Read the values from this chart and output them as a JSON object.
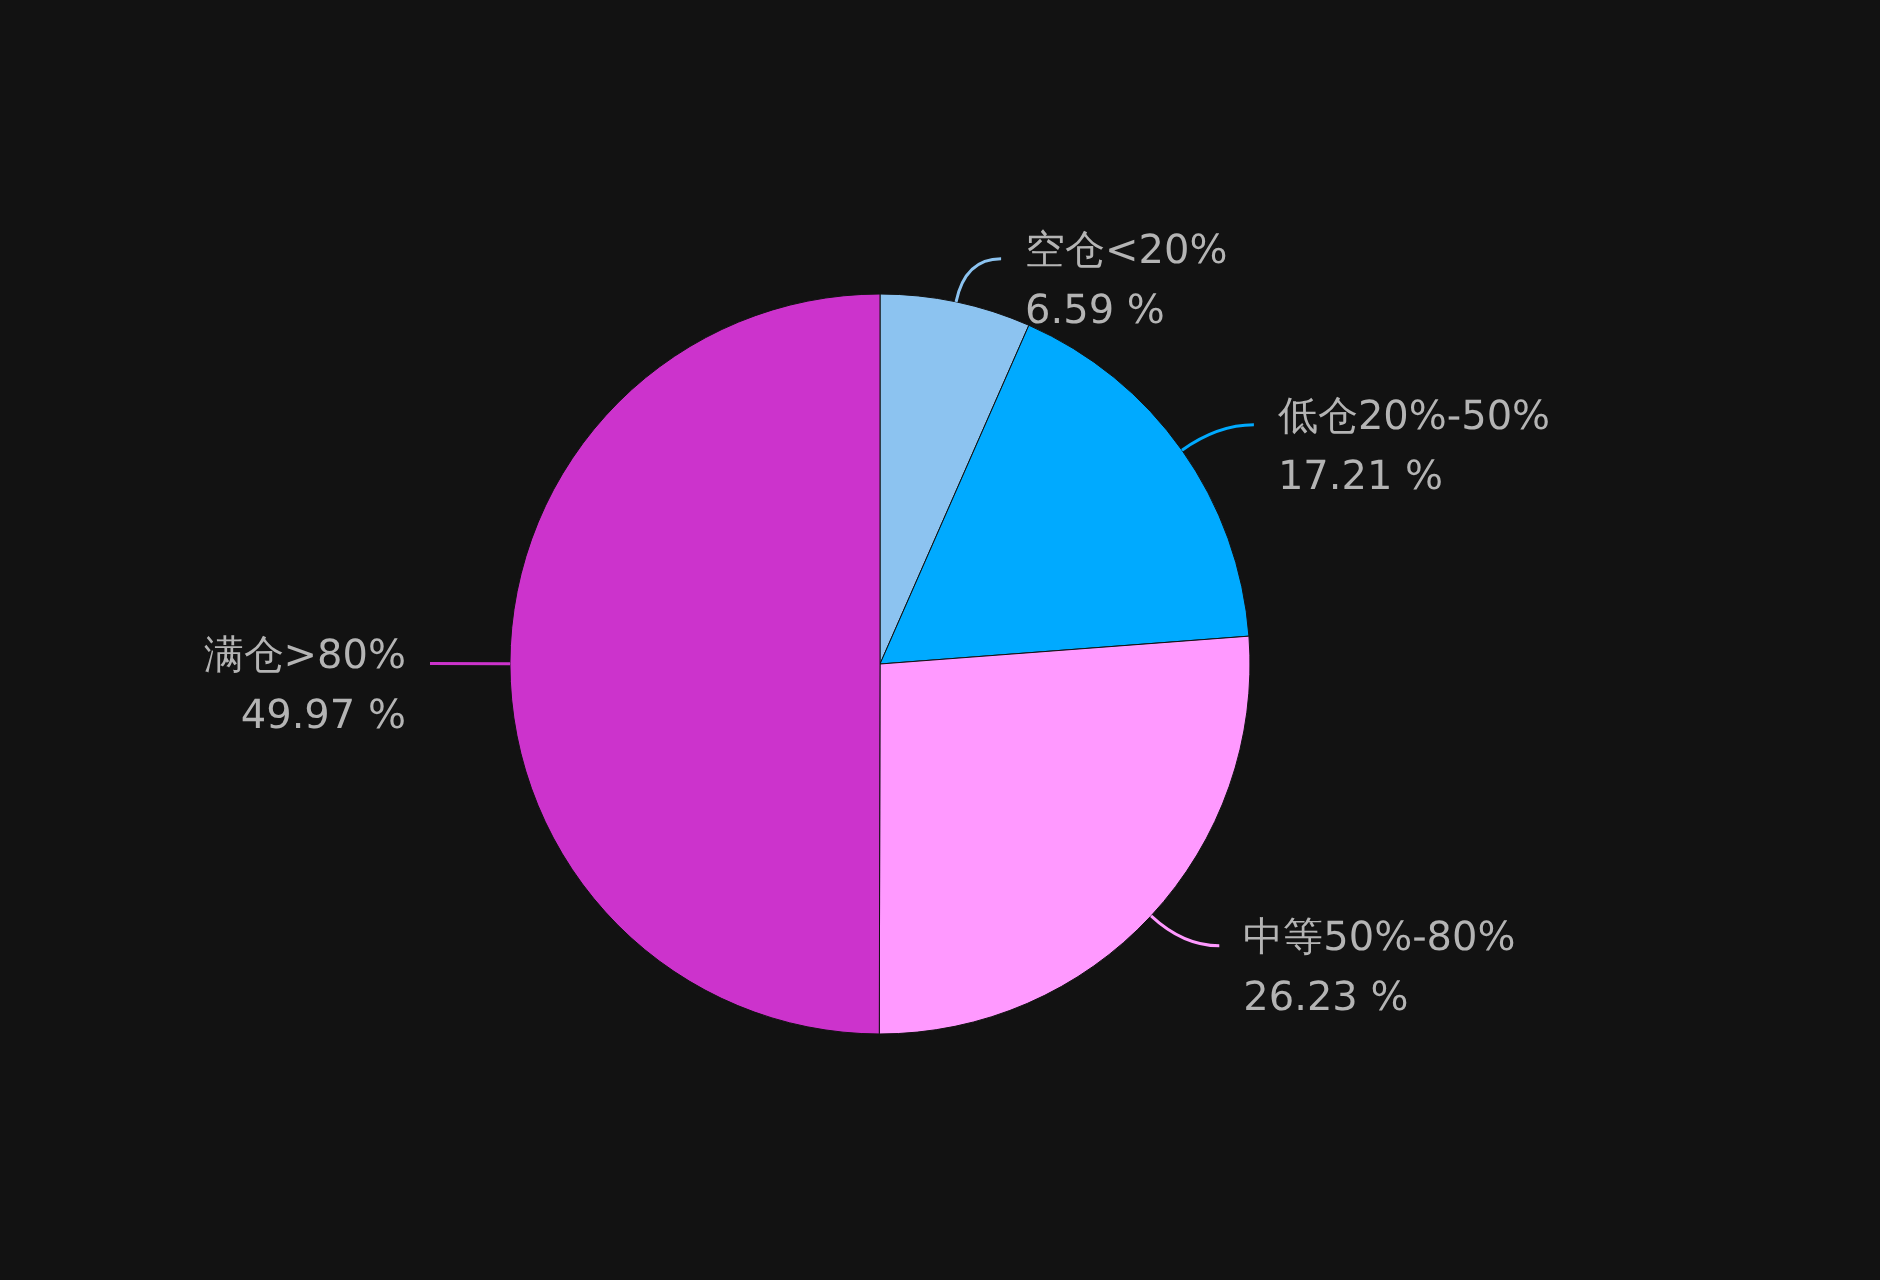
{
  "chart_data": {
    "type": "pie",
    "categories": [
      "空仓<20%",
      "低仓20%-50%",
      "中等50%-80%",
      "满仓>80%"
    ],
    "values": [
      6.59,
      17.21,
      26.23,
      49.97
    ],
    "colors": [
      "#8cc3f0",
      "#00aaff",
      "#ff99ff",
      "#cc33cc"
    ],
    "value_labels": [
      "6.59 %",
      "17.21 %",
      "26.23 %",
      "49.97 %"
    ]
  }
}
